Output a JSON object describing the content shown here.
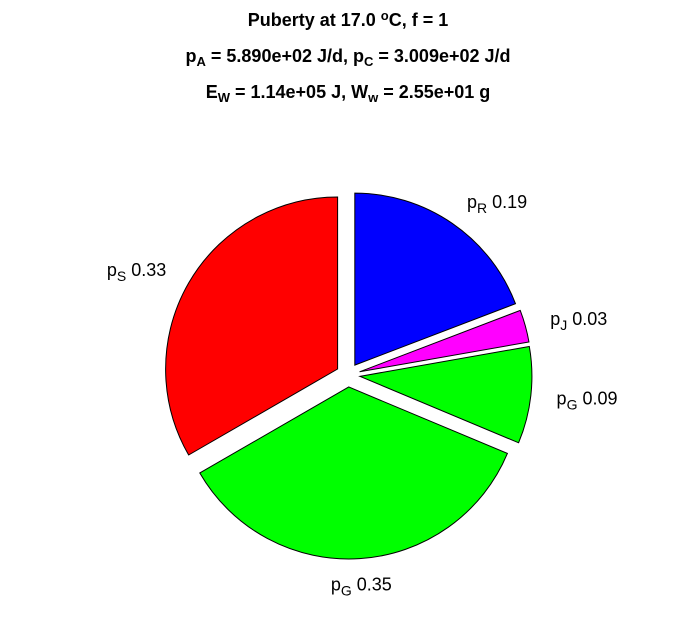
{
  "chart_data": {
    "type": "pie",
    "title": [
      [
        {
          "text": "Puberty at 17.0 "
        },
        {
          "text": "o",
          "script": "sup"
        },
        {
          "text": "C, f = 1"
        }
      ],
      [
        {
          "text": "p"
        },
        {
          "text": "A",
          "script": "sub"
        },
        {
          "text": " = 5.890e+02 J/d,  p"
        },
        {
          "text": "C",
          "script": "sub"
        },
        {
          "text": " = 3.009e+02 J/d"
        }
      ],
      [
        {
          "text": "E"
        },
        {
          "text": "W",
          "script": "sub"
        },
        {
          "text": " = 1.14e+05 J, W"
        },
        {
          "text": "w",
          "script": "sub"
        },
        {
          "text": " = 2.55e+01 g"
        }
      ]
    ],
    "categories": [
      {
        "base": "p",
        "sub": "R"
      },
      {
        "base": "p",
        "sub": "J"
      },
      {
        "base": "p",
        "sub": "G"
      },
      {
        "base": "p",
        "sub": "G"
      },
      {
        "base": "p",
        "sub": "S"
      }
    ],
    "values": [
      0.19,
      0.03,
      0.09,
      0.35,
      0.33
    ],
    "colors": [
      "#0000ff",
      "#ff00ff",
      "#00ff00",
      "#00ff00",
      "#ff0000"
    ],
    "explode": true
  }
}
